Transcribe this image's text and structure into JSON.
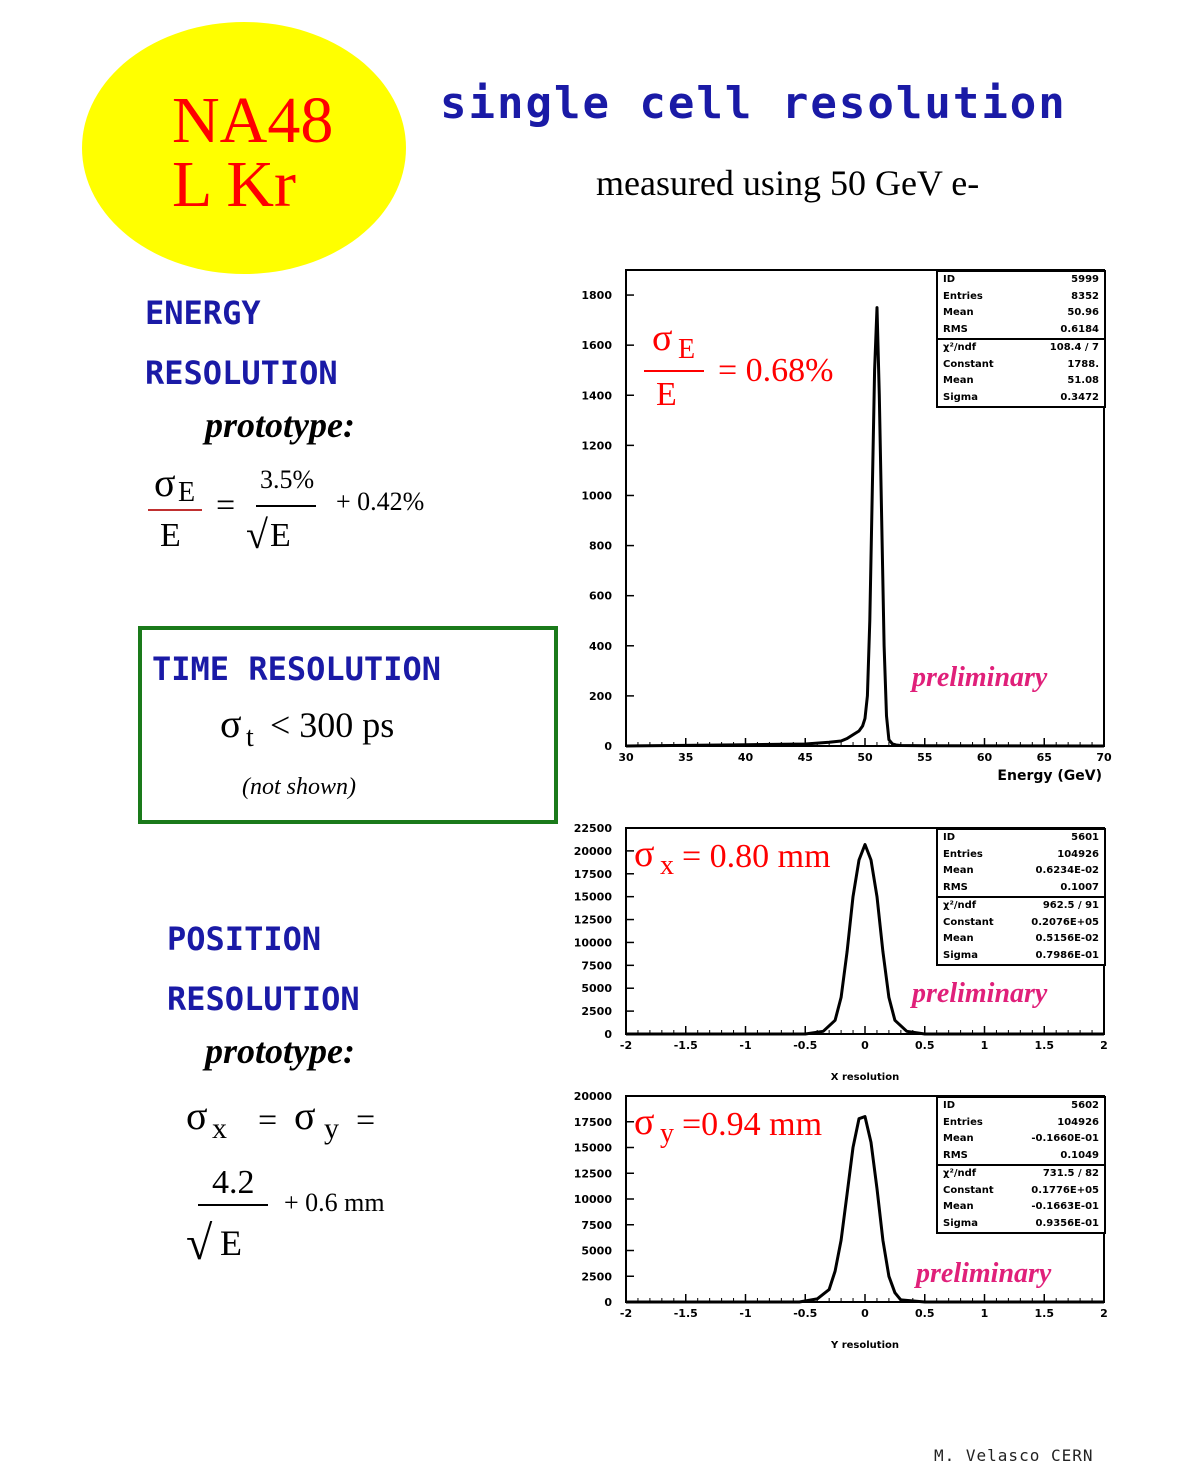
{
  "logo": {
    "line1": "NA48",
    "line2": "L Kr",
    "bg_color": "#ffff00",
    "text_color": "#ff0000"
  },
  "title": "single cell resolution",
  "subtitle": "measured using 50 GeV e-",
  "energy_section": {
    "heading1": "ENERGY",
    "heading2": "RESOLUTION",
    "prototype": "prototype:",
    "formula": {
      "sigma": "σ",
      "sub": "E",
      "den": "E",
      "eq": "=",
      "stoch": "3.5%",
      "sqrt": "√",
      "sqrt_arg": "E",
      "const": "+ 0.42%"
    }
  },
  "time_section": {
    "heading": "TIME  RESOLUTION",
    "sigma": "σ",
    "sub": "t",
    "value": "< 300 ps",
    "note": "(not shown)",
    "border_color": "#1a7a1a"
  },
  "position_section": {
    "heading1": "POSITION",
    "heading2": "RESOLUTION",
    "prototype": "prototype:",
    "formula": {
      "sigma": "σ",
      "sub_x": "x",
      "eq1": "=",
      "sub_y": "y",
      "eq2": "=",
      "num": "4.2",
      "sqrt": "√",
      "sqrt_arg": "E",
      "const": "+ 0.6 mm"
    }
  },
  "credit": "M. Velasco CERN",
  "accent_colors": {
    "heading_blue": "#1a1aa6",
    "preliminary_pink": "#e0207a",
    "result_red": "#ff0000"
  },
  "chart_data": [
    {
      "type": "line",
      "xlabel": "Energy (GeV)",
      "xlim": [
        30,
        70
      ],
      "ylim": [
        0,
        1900
      ],
      "x_ticks": [
        "30",
        "35",
        "40",
        "45",
        "50",
        "55",
        "60",
        "65",
        "70"
      ],
      "x_tick_values": [
        30,
        35,
        40,
        45,
        50,
        55,
        60,
        65,
        70
      ],
      "y_ticks": [
        "0",
        "200",
        "400",
        "600",
        "800",
        "1000",
        "1200",
        "1400",
        "1600",
        "1800"
      ],
      "y_tick_values": [
        0,
        200,
        400,
        600,
        800,
        1000,
        1200,
        1400,
        1600,
        1800
      ],
      "annotation": {
        "sigma": "σ",
        "sub": "E",
        "den": "E",
        "value": "= 0.68%"
      },
      "preliminary": "preliminary",
      "stats": [
        [
          "ID",
          "5999"
        ],
        [
          "Entries",
          "8352"
        ],
        [
          "Mean",
          "50.96"
        ],
        [
          "RMS",
          "0.6184"
        ]
      ],
      "fit": [
        [
          "χ²/ndf",
          "108.4  /  7"
        ],
        [
          "Constant",
          "1788."
        ],
        [
          "Mean",
          "51.08"
        ],
        [
          "Sigma",
          "0.3472"
        ]
      ],
      "series": [
        {
          "x": [
            30,
            40,
            45,
            47,
            48,
            48.5,
            49,
            49.5,
            49.8,
            50.0,
            50.2,
            50.4,
            50.6,
            50.8,
            51.0,
            51.2,
            51.4,
            51.6,
            51.8,
            52.0,
            52.3,
            52.6,
            53,
            55,
            70
          ],
          "y": [
            0,
            5,
            8,
            15,
            20,
            30,
            45,
            60,
            80,
            110,
            200,
            500,
            1000,
            1500,
            1750,
            1400,
            900,
            400,
            120,
            25,
            8,
            4,
            2,
            1,
            0
          ]
        }
      ]
    },
    {
      "type": "line",
      "xlabel": "X resolution",
      "xlim": [
        -2,
        2
      ],
      "ylim": [
        0,
        22500
      ],
      "x_ticks": [
        "-2",
        "-1.5",
        "-1",
        "-0.5",
        "0",
        "0.5",
        "1",
        "1.5",
        "2"
      ],
      "x_tick_values": [
        -2,
        -1.5,
        -1,
        -0.5,
        0,
        0.5,
        1,
        1.5,
        2
      ],
      "y_ticks": [
        "0",
        "2500",
        "5000",
        "7500",
        "10000",
        "12500",
        "15000",
        "17500",
        "20000",
        "22500"
      ],
      "y_tick_values": [
        0,
        2500,
        5000,
        7500,
        10000,
        12500,
        15000,
        17500,
        20000,
        22500
      ],
      "annotation": {
        "sigma": "σ",
        "sub": "x",
        "value": "= 0.80 mm"
      },
      "preliminary": "preliminary",
      "stats": [
        [
          "ID",
          "5601"
        ],
        [
          "Entries",
          "104926"
        ],
        [
          "Mean",
          "0.6234E-02"
        ],
        [
          "RMS",
          "0.1007"
        ]
      ],
      "fit": [
        [
          "χ²/ndf",
          "962.5  /  91"
        ],
        [
          "Constant",
          "0.2076E+05"
        ],
        [
          "Mean",
          "0.5156E-02"
        ],
        [
          "Sigma",
          "0.7986E-01"
        ]
      ],
      "series": [
        {
          "x": [
            -2,
            -0.5,
            -0.35,
            -0.25,
            -0.2,
            -0.15,
            -0.1,
            -0.05,
            0.0,
            0.05,
            0.1,
            0.15,
            0.2,
            0.25,
            0.35,
            0.5,
            2
          ],
          "y": [
            0,
            0,
            300,
            1500,
            4000,
            9000,
            15000,
            19000,
            20700,
            19000,
            15000,
            9000,
            4000,
            1500,
            300,
            0,
            0
          ]
        }
      ]
    },
    {
      "type": "line",
      "xlabel": "Y resolution",
      "xlim": [
        -2,
        2
      ],
      "ylim": [
        0,
        20000
      ],
      "x_ticks": [
        "-2",
        "-1.5",
        "-1",
        "-0.5",
        "0",
        "0.5",
        "1",
        "1.5",
        "2"
      ],
      "x_tick_values": [
        -2,
        -1.5,
        -1,
        -0.5,
        0,
        0.5,
        1,
        1.5,
        2
      ],
      "y_ticks": [
        "0",
        "2500",
        "5000",
        "7500",
        "10000",
        "12500",
        "15000",
        "17500",
        "20000"
      ],
      "y_tick_values": [
        0,
        2500,
        5000,
        7500,
        10000,
        12500,
        15000,
        17500,
        20000
      ],
      "annotation": {
        "sigma": "σ",
        "sub": "y",
        "value": "=0.94 mm"
      },
      "preliminary": "preliminary",
      "stats": [
        [
          "ID",
          "5602"
        ],
        [
          "Entries",
          "104926"
        ],
        [
          "Mean",
          "-0.1660E-01"
        ],
        [
          "RMS",
          "0.1049"
        ]
      ],
      "fit": [
        [
          "χ²/ndf",
          "731.5  /  82"
        ],
        [
          "Constant",
          "0.1776E+05"
        ],
        [
          "Mean",
          "-0.1663E-01"
        ],
        [
          "Sigma",
          "0.9356E-01"
        ]
      ],
      "series": [
        {
          "x": [
            -2,
            -0.55,
            -0.4,
            -0.3,
            -0.25,
            -0.2,
            -0.15,
            -0.1,
            -0.05,
            0.0,
            0.05,
            0.1,
            0.15,
            0.2,
            0.25,
            0.3,
            0.5,
            2
          ],
          "y": [
            0,
            0,
            300,
            1200,
            3000,
            6000,
            10500,
            15000,
            17800,
            18000,
            15500,
            11000,
            6000,
            2500,
            900,
            200,
            0,
            0
          ]
        }
      ]
    }
  ]
}
